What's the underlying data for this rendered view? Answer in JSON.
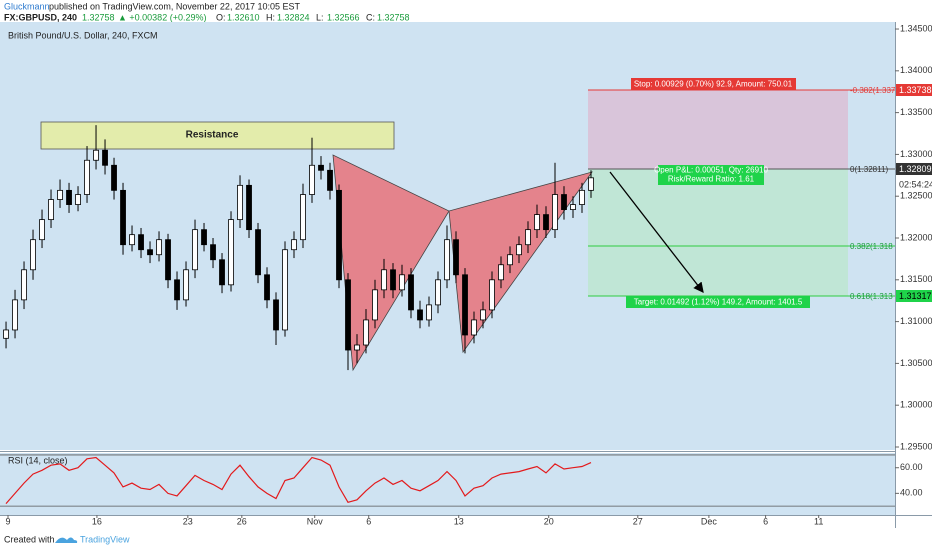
{
  "header": {
    "author": "Gluckmann",
    "published": "published on TradingView.com, November 22, 2017 10:05 EST",
    "symbol": "FX:GBPUSD, 240",
    "last": "1.32758",
    "change": "▲ +0.00382 (+0.29%)",
    "ohlc": [
      {
        "label": "O:",
        "value": "1.32610"
      },
      {
        "label": "H:",
        "value": "1.32824"
      },
      {
        "label": "L:",
        "value": "1.32566"
      },
      {
        "label": "C:",
        "value": "1.32758"
      }
    ]
  },
  "drawings": {
    "resistance": "Resistance",
    "stop": "Stop: 0.00929 (0.70%) 92.9, Amount: 750.01",
    "open_pnl": "Open P&L: 0.00051, Qty: 26910",
    "risk_reward": "Risk/Reward Ratio: 1.61",
    "target": "Target: 0.01492 (1.12%) 149.2, Amount: 1401.5",
    "fib_labels": [
      "-0.382(1.337",
      "0(1.32811)",
      "0.382(1.318",
      "0.618(1.313"
    ],
    "price_tags": [
      "1.33738",
      "1.32809",
      "1.31317"
    ],
    "countdown": "02:54:24"
  },
  "footer": {
    "created": "Created with",
    "brand": "TradingView"
  },
  "chart_data": [
    {
      "type": "candlestick",
      "title": "British Pound/U.S. Dollar, 240, FXCM",
      "x": [
        0,
        1,
        2,
        3,
        4,
        5,
        6,
        7,
        8,
        9,
        10,
        11,
        12,
        13,
        14,
        15,
        16,
        17,
        18,
        19,
        20,
        21,
        22,
        23,
        24,
        25,
        26,
        27,
        28,
        29,
        30,
        31,
        32,
        33,
        34,
        35,
        36,
        37,
        38,
        39,
        40,
        41,
        42,
        43,
        44,
        45,
        46,
        47,
        48,
        49,
        50,
        51,
        52,
        53,
        54,
        55,
        56,
        57,
        58,
        59,
        60,
        61,
        62,
        63,
        64,
        65
      ],
      "open": [
        1.308,
        1.309,
        1.3126,
        1.3162,
        1.3198,
        1.3222,
        1.3246,
        1.3257,
        1.324,
        1.3252,
        1.3293,
        1.3305,
        1.3287,
        1.3257,
        1.3192,
        1.3204,
        1.3186,
        1.318,
        1.3198,
        1.315,
        1.3126,
        1.3162,
        1.321,
        1.3192,
        1.3174,
        1.3144,
        1.3222,
        1.3263,
        1.321,
        1.3156,
        1.3126,
        1.309,
        1.3186,
        1.3198,
        1.3252,
        1.3287,
        1.3281,
        1.3257,
        1.315,
        1.3066,
        1.3072,
        1.3102,
        1.3138,
        1.3162,
        1.3138,
        1.3156,
        1.3114,
        1.3102,
        1.312,
        1.315,
        1.3198,
        1.3156,
        1.3084,
        1.3102,
        1.3114,
        1.315,
        1.3168,
        1.318,
        1.3192,
        1.321,
        1.3228,
        1.321,
        1.3252,
        1.3234,
        1.324,
        1.3257
      ],
      "high": [
        1.31,
        1.3138,
        1.3172,
        1.321,
        1.3234,
        1.3258,
        1.327,
        1.3266,
        1.3262,
        1.331,
        1.3335,
        1.3318,
        1.3296,
        1.3266,
        1.3215,
        1.3212,
        1.3196,
        1.3208,
        1.3205,
        1.316,
        1.3172,
        1.3222,
        1.3218,
        1.32,
        1.3182,
        1.3232,
        1.3275,
        1.327,
        1.3218,
        1.3165,
        1.3135,
        1.3196,
        1.3208,
        1.3265,
        1.332,
        1.3298,
        1.329,
        1.3264,
        1.3158,
        1.3085,
        1.3115,
        1.315,
        1.3175,
        1.317,
        1.3168,
        1.3164,
        1.3125,
        1.313,
        1.316,
        1.3215,
        1.3208,
        1.3164,
        1.3112,
        1.3124,
        1.316,
        1.3178,
        1.319,
        1.3202,
        1.322,
        1.324,
        1.3238,
        1.329,
        1.3262,
        1.325,
        1.3266,
        1.3281
      ],
      "low": [
        1.3068,
        1.308,
        1.3115,
        1.315,
        1.3188,
        1.3212,
        1.3236,
        1.323,
        1.3232,
        1.3242,
        1.3282,
        1.3276,
        1.3246,
        1.318,
        1.3184,
        1.3176,
        1.317,
        1.3172,
        1.314,
        1.3114,
        1.3118,
        1.3152,
        1.3184,
        1.3164,
        1.3134,
        1.3136,
        1.3212,
        1.32,
        1.3146,
        1.3116,
        1.3072,
        1.3082,
        1.3176,
        1.3188,
        1.3242,
        1.327,
        1.3246,
        1.314,
        1.3042,
        1.305,
        1.3062,
        1.3092,
        1.3128,
        1.3128,
        1.313,
        1.3104,
        1.3092,
        1.3094,
        1.311,
        1.314,
        1.3146,
        1.3062,
        1.3074,
        1.3092,
        1.3104,
        1.314,
        1.3158,
        1.317,
        1.3182,
        1.32,
        1.32,
        1.32,
        1.3222,
        1.3224,
        1.323,
        1.3248
      ],
      "close": [
        1.309,
        1.3126,
        1.3162,
        1.3198,
        1.3222,
        1.3246,
        1.3257,
        1.324,
        1.3252,
        1.3293,
        1.3305,
        1.3287,
        1.3257,
        1.3192,
        1.3204,
        1.3186,
        1.318,
        1.3198,
        1.315,
        1.3126,
        1.3162,
        1.321,
        1.3192,
        1.3174,
        1.3144,
        1.3222,
        1.3263,
        1.321,
        1.3156,
        1.3126,
        1.309,
        1.3186,
        1.3198,
        1.3252,
        1.3287,
        1.3281,
        1.3257,
        1.315,
        1.3066,
        1.3072,
        1.3102,
        1.3138,
        1.3162,
        1.3138,
        1.3156,
        1.3114,
        1.3102,
        1.312,
        1.315,
        1.3198,
        1.3156,
        1.3084,
        1.3102,
        1.3114,
        1.315,
        1.3168,
        1.318,
        1.3192,
        1.321,
        1.3228,
        1.321,
        1.3252,
        1.3234,
        1.324,
        1.3257,
        1.3272
      ],
      "up_color": "#ffffff",
      "down_color": "#000000",
      "xlim": [
        -0.67,
        98.78
      ],
      "xticks": [
        {
          "value": 0.22,
          "label": "9"
        },
        {
          "value": 10.1,
          "label": "16"
        },
        {
          "value": 20.2,
          "label": "23"
        },
        {
          "value": 26.2,
          "label": "26"
        },
        {
          "value": 34.3,
          "label": "Nov"
        },
        {
          "value": 40.3,
          "label": "6"
        },
        {
          "value": 50.3,
          "label": "13"
        },
        {
          "value": 60.3,
          "label": "20"
        },
        {
          "value": 70.2,
          "label": "27"
        },
        {
          "value": 78.1,
          "label": "Dec"
        },
        {
          "value": 84.4,
          "label": "6"
        },
        {
          "value": 90.3,
          "label": "11"
        }
      ],
      "ylim": [
        1.29464,
        1.34584
      ],
      "yticks": [
        {
          "value": 1.295,
          "label": "1.29500"
        },
        {
          "value": 1.3,
          "label": "1.30000"
        },
        {
          "value": 1.305,
          "label": "1.30500"
        },
        {
          "value": 1.31,
          "label": "1.31000"
        },
        {
          "value": 1.315,
          "label": "1.31500"
        },
        {
          "value": 1.32,
          "label": "1.32000"
        },
        {
          "value": 1.325,
          "label": "1.32500"
        },
        {
          "value": 1.33,
          "label": "1.33000"
        },
        {
          "value": 1.335,
          "label": "1.33500"
        },
        {
          "value": 1.34,
          "label": "1.34000"
        },
        {
          "value": 1.345,
          "label": "1.34500"
        }
      ]
    },
    {
      "type": "line",
      "title": "RSI (14, close)",
      "color": "#e31a1c",
      "x": [
        0,
        1,
        2,
        3,
        4,
        5,
        6,
        7,
        8,
        9,
        10,
        11,
        12,
        13,
        14,
        15,
        16,
        17,
        18,
        19,
        20,
        21,
        22,
        23,
        24,
        25,
        26,
        27,
        28,
        29,
        30,
        31,
        32,
        33,
        34,
        35,
        36,
        37,
        38,
        39,
        40,
        41,
        42,
        43,
        44,
        45,
        46,
        47,
        48,
        49,
        50,
        51,
        52,
        53,
        54,
        55,
        56,
        57,
        58,
        59,
        60,
        61,
        62,
        63,
        64,
        65
      ],
      "values": [
        32,
        40,
        48,
        55,
        58,
        62,
        63,
        58,
        60,
        67,
        68,
        62,
        56,
        45,
        48,
        44,
        43,
        47,
        40,
        38,
        46,
        54,
        50,
        47,
        43,
        55,
        62,
        53,
        45,
        40,
        36,
        50,
        52,
        60,
        68,
        66,
        62,
        45,
        33,
        35,
        42,
        48,
        52,
        47,
        50,
        44,
        42,
        46,
        50,
        57,
        50,
        38,
        44,
        46,
        52,
        55,
        56,
        57,
        59,
        61,
        56,
        63,
        59,
        60,
        61,
        64
      ],
      "bands": [
        30,
        70
      ],
      "xlim": [
        -0.67,
        98.78
      ],
      "ylim": [
        23.1,
        71.5
      ],
      "yticks": [
        {
          "value": 40,
          "label": "40.00"
        },
        {
          "value": 60,
          "label": "60.00"
        }
      ]
    }
  ]
}
